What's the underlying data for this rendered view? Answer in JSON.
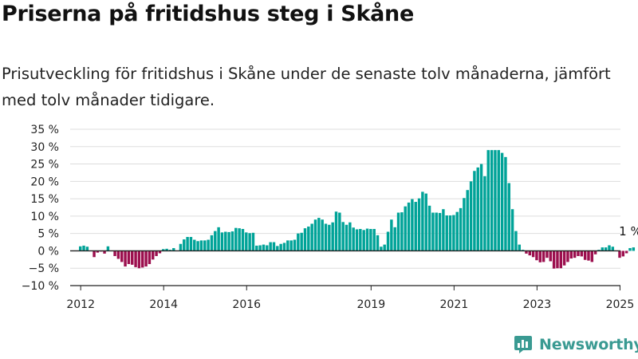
{
  "header": {
    "title": "Priserna på fritidshus steg i Skåne",
    "subtitle": "Prisutveckling för fritidshus i Skåne under de senaste tolv månaderna, jämfört med tolv månader tidigare."
  },
  "brand": {
    "name": "Newsworthy",
    "icon": "newsworthy-logo-icon",
    "color": "#3a9a92"
  },
  "colors": {
    "positive": "#00a398",
    "negative": "#9c0f4e",
    "grid": "#dddddd",
    "axis": "#222222"
  },
  "chart_data": {
    "type": "bar",
    "title": "Priserna på fritidshus steg i Skåne",
    "xlabel": "",
    "ylabel": "",
    "ylim": [
      -10,
      35
    ],
    "yticks": [
      -10,
      -5,
      0,
      5,
      10,
      15,
      20,
      25,
      30,
      35
    ],
    "ytick_labels": [
      "−10 %",
      "−5 %",
      "0 %",
      "5 %",
      "10 %",
      "15 %",
      "20 %",
      "25 %",
      "30 %",
      "35 %"
    ],
    "xticks": [
      "2012",
      "2014",
      "2016",
      "2019",
      "2021",
      "2023",
      "2025"
    ],
    "grid": true,
    "start": "2012-01",
    "annotation": {
      "text": "1 %",
      "at": "2025-04"
    },
    "series": [
      {
        "frequency": "monthly",
        "values": [
          1.3,
          1.5,
          1.2,
          0.0,
          -1.8,
          -0.5,
          -0.2,
          -0.8,
          1.3,
          0.0,
          -1.5,
          -2.3,
          -3.2,
          -4.5,
          -3.8,
          -4.0,
          -4.7,
          -5.0,
          -4.8,
          -4.5,
          -3.8,
          -2.5,
          -1.5,
          -0.7,
          0.5,
          0.6,
          0.3,
          0.8,
          0.0,
          2.0,
          3.3,
          4.0,
          4.0,
          3.2,
          2.8,
          3.0,
          3.0,
          3.2,
          4.5,
          5.7,
          6.8,
          5.3,
          5.5,
          5.4,
          5.6,
          6.6,
          6.5,
          6.3,
          5.3,
          5.1,
          5.2,
          1.5,
          1.6,
          1.8,
          1.6,
          2.5,
          2.5,
          1.4,
          2.0,
          2.3,
          3.0,
          3.0,
          3.2,
          5.0,
          5.2,
          6.5,
          7.0,
          7.8,
          9.0,
          9.5,
          9.0,
          7.8,
          7.5,
          8.2,
          11.3,
          11.0,
          8.3,
          7.5,
          8.2,
          6.7,
          6.2,
          6.3,
          6.0,
          6.4,
          6.3,
          6.3,
          4.5,
          1.2,
          1.8,
          5.5,
          9.0,
          6.8,
          11.0,
          11.1,
          12.8,
          13.9,
          14.9,
          14.1,
          15.1,
          17.0,
          16.5,
          13.0,
          11.0,
          11.0,
          10.9,
          12.0,
          10.2,
          10.2,
          10.3,
          11.2,
          12.3,
          15.2,
          17.5,
          20.0,
          23.0,
          24.0,
          25.0,
          21.5,
          29.0,
          29.0,
          29.0,
          29.0,
          28.2,
          27.0,
          19.5,
          12.0,
          5.7,
          1.8,
          0.3,
          -0.8,
          -1.3,
          -1.8,
          -2.7,
          -3.3,
          -3.2,
          -2.0,
          -3.0,
          -5.1,
          -5.0,
          -5.0,
          -4.2,
          -3.2,
          -2.2,
          -2.0,
          -1.5,
          -1.6,
          -2.6,
          -2.8,
          -3.2,
          -1.0,
          0.3,
          1.0,
          1.0,
          1.6,
          1.2,
          0.0,
          -2.0,
          -1.6,
          -0.7,
          0.8,
          1.0
        ]
      }
    ]
  }
}
